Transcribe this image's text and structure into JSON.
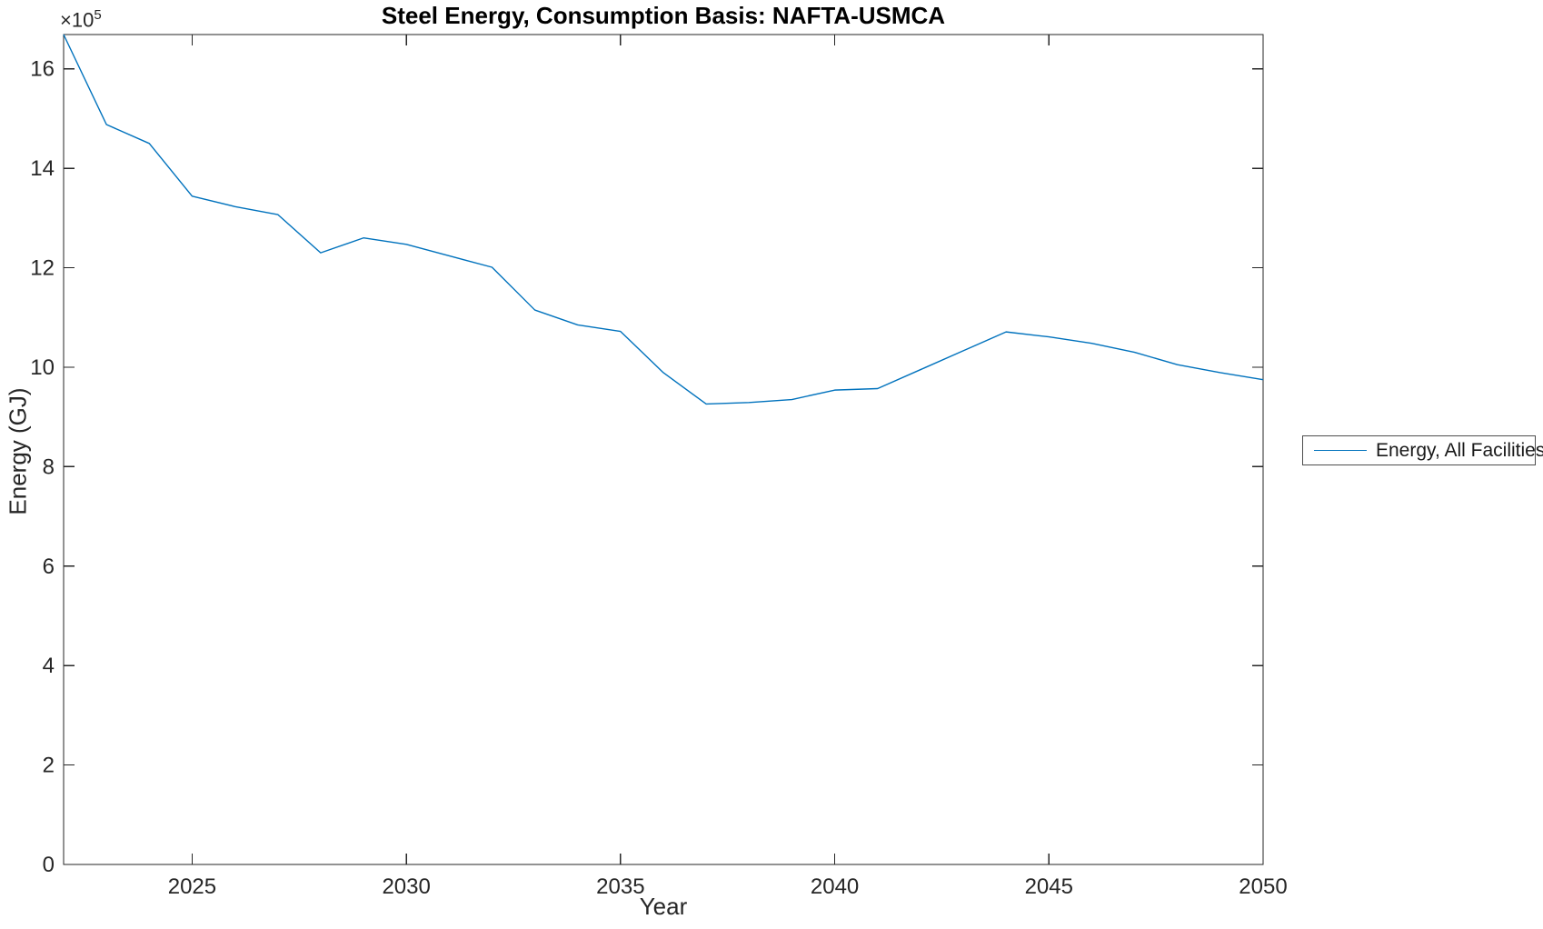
{
  "figure": {
    "background": "#ffffff",
    "title": "Steel Energy, Consumption Basis: NAFTA-USMCA",
    "y_multiplier_base": "×10",
    "y_multiplier_exponent": "5"
  },
  "legend": {
    "entries": [
      {
        "label": "Energy, All Facilities",
        "color": "#0072BD"
      }
    ],
    "position": "right-outside-middle"
  },
  "colors": {
    "line": "#0072BD",
    "axis": "#262626",
    "title": "#000000",
    "background": "#ffffff"
  },
  "chart_data": {
    "type": "line",
    "title": "Steel Energy, Consumption Basis: NAFTA-USMCA",
    "xlabel": "Year",
    "ylabel": "Energy (GJ)",
    "y_unit_multiplier": "1e5",
    "xlim": [
      2022,
      2050
    ],
    "ylim_x1e5": [
      0,
      16.69
    ],
    "x_ticks": [
      2025,
      2030,
      2035,
      2040,
      2045,
      2050
    ],
    "y_ticks_x1e5": [
      0,
      2,
      4,
      6,
      8,
      10,
      12,
      14,
      16
    ],
    "grid": false,
    "box": true,
    "tick_direction": "in",
    "legend_position": "right-outside",
    "series": [
      {
        "name": "Energy, All Facilities",
        "color": "#0072BD",
        "x": [
          2022,
          2023,
          2024,
          2025,
          2026,
          2027,
          2028,
          2029,
          2030,
          2031,
          2032,
          2033,
          2034,
          2035,
          2036,
          2037,
          2038,
          2039,
          2040,
          2041,
          2042,
          2043,
          2044,
          2045,
          2046,
          2047,
          2048,
          2049,
          2050
        ],
        "values_x1e5": [
          16.69,
          14.88,
          14.5,
          13.44,
          13.23,
          13.07,
          12.3,
          12.6,
          12.47,
          12.24,
          12.01,
          11.15,
          10.85,
          10.72,
          9.89,
          9.26,
          9.29,
          9.35,
          9.54,
          9.57,
          9.95,
          10.33,
          10.71,
          10.61,
          10.48,
          10.3,
          10.05,
          9.89,
          9.75
        ]
      }
    ]
  }
}
